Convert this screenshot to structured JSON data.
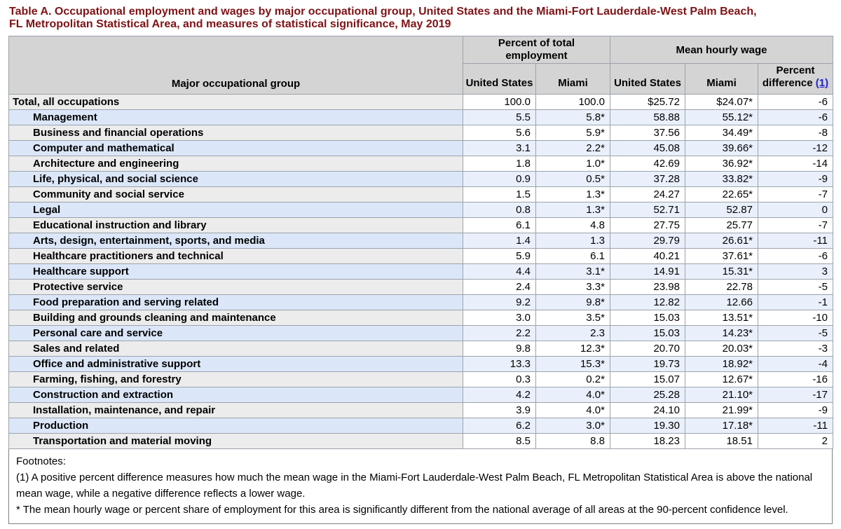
{
  "title": {
    "line1": "Table A. Occupational employment and wages by major occupational group, United States and the Miami-Fort Lauderdale-West Palm Beach,",
    "line2": "FL Metropolitan Statistical Area, and measures of statistical significance, May 2019"
  },
  "table": {
    "headers": {
      "major_group": "Major occupational group",
      "percent_employment": "Percent of total employment",
      "mean_wage": "Mean hourly wage",
      "united_states": "United States",
      "miami": "Miami",
      "percent_difference": "Percent difference",
      "percent_difference_link": "(1)"
    },
    "columns": [
      "label",
      "pct_us",
      "pct_miami",
      "wage_us",
      "wage_miami",
      "diff"
    ],
    "rows": [
      {
        "label": "Total, all occupations",
        "indent": false,
        "pct_us": "100.0",
        "pct_miami": "100.0",
        "wage_us": "$25.72",
        "wage_miami": "$24.07*",
        "diff": "-6"
      },
      {
        "label": "Management",
        "indent": true,
        "pct_us": "5.5",
        "pct_miami": "5.8*",
        "wage_us": "58.88",
        "wage_miami": "55.12*",
        "diff": "-6"
      },
      {
        "label": "Business and financial operations",
        "indent": true,
        "pct_us": "5.6",
        "pct_miami": "5.9*",
        "wage_us": "37.56",
        "wage_miami": "34.49*",
        "diff": "-8"
      },
      {
        "label": "Computer and mathematical",
        "indent": true,
        "pct_us": "3.1",
        "pct_miami": "2.2*",
        "wage_us": "45.08",
        "wage_miami": "39.66*",
        "diff": "-12"
      },
      {
        "label": "Architecture and engineering",
        "indent": true,
        "pct_us": "1.8",
        "pct_miami": "1.0*",
        "wage_us": "42.69",
        "wage_miami": "36.92*",
        "diff": "-14"
      },
      {
        "label": "Life, physical, and social science",
        "indent": true,
        "pct_us": "0.9",
        "pct_miami": "0.5*",
        "wage_us": "37.28",
        "wage_miami": "33.82*",
        "diff": "-9"
      },
      {
        "label": "Community and social service",
        "indent": true,
        "pct_us": "1.5",
        "pct_miami": "1.3*",
        "wage_us": "24.27",
        "wage_miami": "22.65*",
        "diff": "-7"
      },
      {
        "label": "Legal",
        "indent": true,
        "pct_us": "0.8",
        "pct_miami": "1.3*",
        "wage_us": "52.71",
        "wage_miami": "52.87",
        "diff": "0"
      },
      {
        "label": "Educational instruction and library",
        "indent": true,
        "pct_us": "6.1",
        "pct_miami": "4.8",
        "wage_us": "27.75",
        "wage_miami": "25.77",
        "diff": "-7"
      },
      {
        "label": "Arts, design, entertainment, sports, and media",
        "indent": true,
        "pct_us": "1.4",
        "pct_miami": "1.3",
        "wage_us": "29.79",
        "wage_miami": "26.61*",
        "diff": "-11"
      },
      {
        "label": "Healthcare practitioners and technical",
        "indent": true,
        "pct_us": "5.9",
        "pct_miami": "6.1",
        "wage_us": "40.21",
        "wage_miami": "37.61*",
        "diff": "-6"
      },
      {
        "label": "Healthcare support",
        "indent": true,
        "pct_us": "4.4",
        "pct_miami": "3.1*",
        "wage_us": "14.91",
        "wage_miami": "15.31*",
        "diff": "3"
      },
      {
        "label": "Protective service",
        "indent": true,
        "pct_us": "2.4",
        "pct_miami": "3.3*",
        "wage_us": "23.98",
        "wage_miami": "22.78",
        "diff": "-5"
      },
      {
        "label": "Food preparation and serving related",
        "indent": true,
        "pct_us": "9.2",
        "pct_miami": "9.8*",
        "wage_us": "12.82",
        "wage_miami": "12.66",
        "diff": "-1"
      },
      {
        "label": "Building and grounds cleaning and maintenance",
        "indent": true,
        "pct_us": "3.0",
        "pct_miami": "3.5*",
        "wage_us": "15.03",
        "wage_miami": "13.51*",
        "diff": "-10"
      },
      {
        "label": "Personal care and service",
        "indent": true,
        "pct_us": "2.2",
        "pct_miami": "2.3",
        "wage_us": "15.03",
        "wage_miami": "14.23*",
        "diff": "-5"
      },
      {
        "label": "Sales and related",
        "indent": true,
        "pct_us": "9.8",
        "pct_miami": "12.3*",
        "wage_us": "20.70",
        "wage_miami": "20.03*",
        "diff": "-3"
      },
      {
        "label": "Office and administrative support",
        "indent": true,
        "pct_us": "13.3",
        "pct_miami": "15.3*",
        "wage_us": "19.73",
        "wage_miami": "18.92*",
        "diff": "-4"
      },
      {
        "label": "Farming, fishing, and forestry",
        "indent": true,
        "pct_us": "0.3",
        "pct_miami": "0.2*",
        "wage_us": "15.07",
        "wage_miami": "12.67*",
        "diff": "-16"
      },
      {
        "label": "Construction and extraction",
        "indent": true,
        "pct_us": "4.2",
        "pct_miami": "4.0*",
        "wage_us": "25.28",
        "wage_miami": "21.10*",
        "diff": "-17"
      },
      {
        "label": "Installation, maintenance, and repair",
        "indent": true,
        "pct_us": "3.9",
        "pct_miami": "4.0*",
        "wage_us": "24.10",
        "wage_miami": "21.99*",
        "diff": "-9"
      },
      {
        "label": "Production",
        "indent": true,
        "pct_us": "6.2",
        "pct_miami": "3.0*",
        "wage_us": "19.30",
        "wage_miami": "17.18*",
        "diff": "-11"
      },
      {
        "label": "Transportation and material moving",
        "indent": true,
        "pct_us": "8.5",
        "pct_miami": "8.8",
        "wage_us": "18.23",
        "wage_miami": "18.51",
        "diff": "2"
      }
    ]
  },
  "footnotes": {
    "heading": "Footnotes:",
    "note1": "(1) A positive percent difference measures how much the mean wage in the Miami-Fort Lauderdale-West Palm Beach, FL Metropolitan Statistical Area is above the national mean wage, while a negative difference reflects a lower wage.",
    "note2": "* The mean hourly wage or percent share of employment for this area is significantly different from the national average of all areas at the 90-percent confidence level."
  },
  "colors": {
    "title_maroon": "#7e1316",
    "link_blue": "#2222cc",
    "header_gray": "#d4d4d4",
    "row_blue_label": "#dbe7f9",
    "row_blue_cell": "#e9f0fb",
    "row_gray_label": "#ececec",
    "row_white": "#ffffff",
    "border_outer": "#7f7f7f",
    "border_inner": "#9ba3ab"
  }
}
